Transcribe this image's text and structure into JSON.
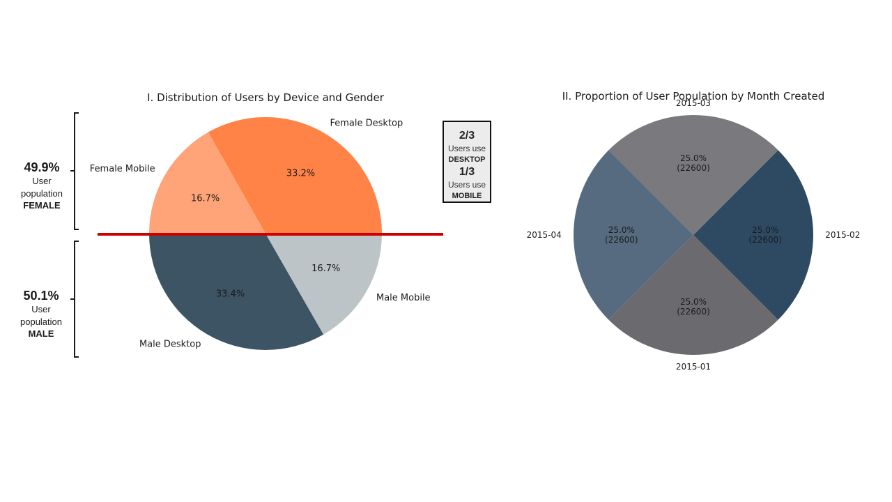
{
  "chart_data": [
    {
      "type": "pie",
      "title": "I. Distribution of Users by Device and Gender",
      "slices": [
        {
          "label": "Female Desktop",
          "value": 33.2,
          "pct_label": "33.2%",
          "color": "#ff8247"
        },
        {
          "label": "Female Mobile",
          "value": 16.7,
          "pct_label": "16.7%",
          "color": "#ffa478"
        },
        {
          "label": "Male Desktop",
          "value": 33.4,
          "pct_label": "33.4%",
          "color": "#3d5464"
        },
        {
          "label": "Male Mobile",
          "value": 16.7,
          "pct_label": "16.7%",
          "color": "#bcc4c8"
        }
      ]
    },
    {
      "type": "pie",
      "title": "II. Proportion of User Population by Month Created",
      "slices": [
        {
          "label": "2015-01",
          "value": 22600,
          "pct_label": "25.0%",
          "count_label": "(22600)",
          "color": "#6b6a6f"
        },
        {
          "label": "2015-02",
          "value": 22600,
          "pct_label": "25.0%",
          "count_label": "(22600)",
          "color": "#2e4a63"
        },
        {
          "label": "2015-03",
          "value": 22600,
          "pct_label": "25.0%",
          "count_label": "(22600)",
          "color": "#7a797e"
        },
        {
          "label": "2015-04",
          "value": 22600,
          "pct_label": "25.0%",
          "count_label": "(22600)",
          "color": "#566b80"
        }
      ]
    }
  ],
  "annotations": {
    "female": {
      "pct": "49.9%",
      "line1": "User",
      "line2": "population",
      "group": "FEMALE"
    },
    "male": {
      "pct": "50.1%",
      "line1": "User",
      "line2": "population",
      "group": "MALE"
    },
    "device_box": {
      "desktop_frac": "2/3",
      "desktop_text": "Users use",
      "desktop_label": "DESKTOP",
      "mobile_frac": "1/3",
      "mobile_text": "Users use",
      "mobile_label": "MOBILE"
    },
    "divider_color": "#cc0000"
  }
}
